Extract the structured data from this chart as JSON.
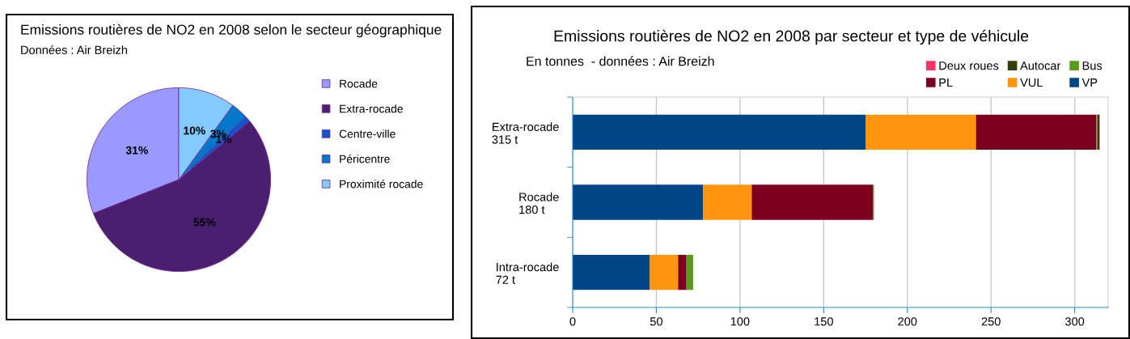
{
  "chart_data": [
    {
      "type": "pie",
      "title": "Emissions routières de NO2 en 2008 selon le secteur géographique",
      "subtitle": "Données : Air Breizh",
      "categories": [
        "Rocade",
        "Extra-rocade",
        "Centre-ville",
        "Péricentre",
        "Proximité rocade"
      ],
      "values": [
        31,
        55,
        1,
        3,
        10
      ],
      "value_labels": [
        "31%",
        "55%",
        "1%",
        "3%",
        "10%"
      ],
      "colors": [
        "#9999ff",
        "#4b1f6f",
        "#1155cc",
        "#0077c8",
        "#83caff"
      ],
      "legend": "right"
    },
    {
      "type": "bar",
      "orientation": "horizontal",
      "stacked": true,
      "title": "Emissions routières de NO2 en 2008 par secteur et type de véhicule",
      "subtitle": "En tonnes  - données : Air Breizh",
      "categories": [
        "Extra-rocade\n315 t",
        "Rocade\n180 t",
        "Intra-rocade\n72 t"
      ],
      "series": [
        {
          "name": "VP",
          "color": "#004586",
          "values": [
            175,
            78,
            46
          ]
        },
        {
          "name": "VUL",
          "color": "#ff950e",
          "values": [
            66,
            29,
            17
          ]
        },
        {
          "name": "PL",
          "color": "#7e0021",
          "values": [
            72,
            72.5,
            5
          ]
        },
        {
          "name": "Bus",
          "color": "#579d1c",
          "values": [
            0.5,
            0.3,
            4
          ]
        },
        {
          "name": "Autocar",
          "color": "#314004",
          "values": [
            1.2,
            0.2,
            0
          ]
        },
        {
          "name": "Deux roues",
          "color": "#ff3366",
          "values": [
            0.3,
            0,
            null
          ]
        }
      ],
      "xlim": [
        0,
        320
      ],
      "xticks": [
        0,
        50,
        100,
        150,
        200,
        250,
        300
      ],
      "grid": "x",
      "legend": "top right"
    }
  ]
}
